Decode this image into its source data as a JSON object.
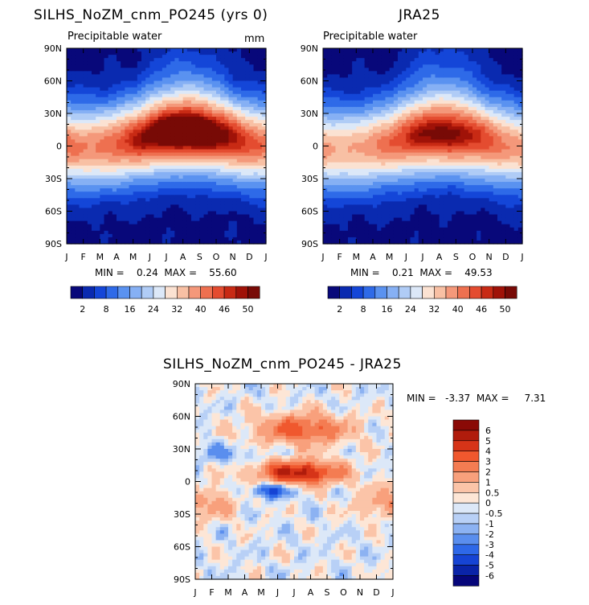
{
  "chart_data": [
    {
      "type": "heatmap",
      "title": "SILHS_NoZM_cnm_PO245 (yrs 0)",
      "subtitle": "Precipitable water",
      "units": "mm",
      "x_ticks": [
        "J",
        "F",
        "M",
        "A",
        "M",
        "J",
        "J",
        "A",
        "S",
        "O",
        "N",
        "D",
        "J"
      ],
      "y_ticks": [
        "90N",
        "60N",
        "30N",
        "0",
        "30S",
        "60S",
        "90S"
      ],
      "ylim": [
        -90,
        90
      ],
      "min_max_text": "MIN =    0.24  MAX =    55.60",
      "min": 0.24,
      "max": 55.6,
      "colorbar_labels": [
        "2",
        "8",
        "16",
        "24",
        "32",
        "40",
        "46",
        "50"
      ],
      "colorbar_colors": [
        "#08087a",
        "#0a2ab0",
        "#1446d8",
        "#2e6ae8",
        "#5a92f0",
        "#86b0f4",
        "#b0ccf6",
        "#dce8f8",
        "#fbe2d2",
        "#f8c0a4",
        "#f4987a",
        "#ee7050",
        "#e44c30",
        "#c82a14",
        "#a01208",
        "#780a06"
      ],
      "equator_peak_lat": 6,
      "equator_peak_value": 55.6
    },
    {
      "type": "heatmap",
      "title": "JRA25",
      "subtitle": "Precipitable water",
      "x_ticks": [
        "J",
        "F",
        "M",
        "A",
        "M",
        "J",
        "J",
        "A",
        "S",
        "O",
        "N",
        "D",
        "J"
      ],
      "y_ticks": [
        "90N",
        "60N",
        "30N",
        "0",
        "30S",
        "60S",
        "90S"
      ],
      "ylim": [
        -90,
        90
      ],
      "min_max_text": "MIN =    0.21  MAX =    49.53",
      "min": 0.21,
      "max": 49.53,
      "colorbar_labels": [
        "2",
        "8",
        "16",
        "24",
        "32",
        "40",
        "46",
        "50"
      ],
      "colorbar_colors": [
        "#08087a",
        "#0a2ab0",
        "#1446d8",
        "#2e6ae8",
        "#5a92f0",
        "#86b0f4",
        "#b0ccf6",
        "#dce8f8",
        "#fbe2d2",
        "#f8c0a4",
        "#f4987a",
        "#ee7050",
        "#e44c30",
        "#c82a14",
        "#a01208",
        "#780a06"
      ],
      "equator_peak_lat": 4,
      "equator_peak_value": 49.5
    },
    {
      "type": "heatmap",
      "title": "SILHS_NoZM_cnm_PO245 - JRA25",
      "x_ticks": [
        "J",
        "F",
        "M",
        "A",
        "M",
        "J",
        "J",
        "A",
        "S",
        "O",
        "N",
        "D",
        "J"
      ],
      "y_ticks": [
        "90N",
        "60N",
        "30N",
        "0",
        "30S",
        "60S",
        "90S"
      ],
      "ylim": [
        -90,
        90
      ],
      "min_max_text": "MIN =   -3.37  MAX =     7.31",
      "min": -3.37,
      "max": 7.31,
      "colorbar_labels": [
        "6",
        "5",
        "4",
        "3",
        "2",
        "1",
        "0.5",
        "0",
        "-0.5",
        "-1",
        "-2",
        "-3",
        "-4",
        "-5",
        "-6"
      ],
      "colorbar_colors": [
        "#8a0a06",
        "#b01c0c",
        "#d63418",
        "#f0582e",
        "#f47c52",
        "#f8a07c",
        "#fbc4a8",
        "#fde6d6",
        "#dce8f8",
        "#b8d0f6",
        "#8cb2f2",
        "#5a8eee",
        "#2e68e8",
        "#1644d4",
        "#0a24a8",
        "#06067a"
      ]
    }
  ]
}
